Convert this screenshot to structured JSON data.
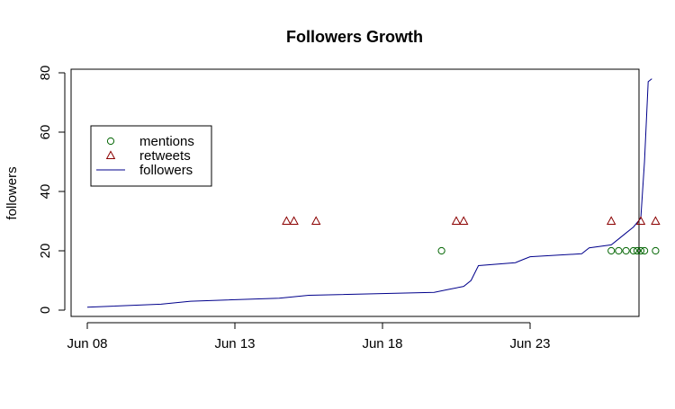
{
  "chart_data": {
    "type": "line",
    "title": "Followers Growth",
    "xlabel": "",
    "ylabel": "followers",
    "xlim": [
      "2015-06-08",
      "2015-06-27"
    ],
    "ylim": [
      0,
      80
    ],
    "x_ticks": [
      {
        "date": "2015-06-08",
        "label": "Jun 08"
      },
      {
        "date": "2015-06-13",
        "label": "Jun 13"
      },
      {
        "date": "2015-06-18",
        "label": "Jun 18"
      },
      {
        "date": "2015-06-23",
        "label": "Jun 23"
      }
    ],
    "y_ticks": [
      0,
      20,
      40,
      60,
      80
    ],
    "grid": false,
    "legend": {
      "position": "top-left",
      "entries": [
        {
          "label": "mentions",
          "marker": "circle",
          "color": "#006400"
        },
        {
          "label": "retweets",
          "marker": "triangle",
          "color": "#8b0000"
        },
        {
          "label": "followers",
          "marker": "line",
          "color": "#00008b"
        }
      ]
    },
    "series": [
      {
        "name": "followers",
        "kind": "line",
        "color": "#00008b",
        "points": [
          [
            "2015-06-08 00:00",
            1
          ],
          [
            "2015-06-10 12:00",
            2
          ],
          [
            "2015-06-11 12:00",
            3
          ],
          [
            "2015-06-14 12:00",
            4
          ],
          [
            "2015-06-15 12:00",
            5
          ],
          [
            "2015-06-19 18:00",
            6
          ],
          [
            "2015-06-20 06:00",
            7
          ],
          [
            "2015-06-20 18:00",
            8
          ],
          [
            "2015-06-21 00:00",
            10
          ],
          [
            "2015-06-21 06:00",
            15
          ],
          [
            "2015-06-22 12:00",
            16
          ],
          [
            "2015-06-22 18:00",
            17
          ],
          [
            "2015-06-23 00:00",
            18
          ],
          [
            "2015-06-24 18:00",
            19
          ],
          [
            "2015-06-25 00:00",
            21
          ],
          [
            "2015-06-25 18:00",
            22
          ],
          [
            "2015-06-26 00:00",
            24
          ],
          [
            "2015-06-26 06:00",
            26
          ],
          [
            "2015-06-26 12:00",
            28
          ],
          [
            "2015-06-26 18:00",
            31
          ],
          [
            "2015-06-26 21:00",
            50
          ],
          [
            "2015-06-27 00:00",
            77
          ],
          [
            "2015-06-27 03:00",
            78
          ]
        ]
      },
      {
        "name": "mentions",
        "kind": "points",
        "marker": "circle",
        "color": "#006400",
        "points": [
          [
            "2015-06-20 00:00",
            20
          ],
          [
            "2015-06-25 18:00",
            20
          ],
          [
            "2015-06-26 00:00",
            20
          ],
          [
            "2015-06-26 06:00",
            20
          ],
          [
            "2015-06-26 12:00",
            20
          ],
          [
            "2015-06-26 15:00",
            20
          ],
          [
            "2015-06-26 18:00",
            20
          ],
          [
            "2015-06-26 21:00",
            20
          ],
          [
            "2015-06-27 06:00",
            20
          ]
        ]
      },
      {
        "name": "retweets",
        "kind": "points",
        "marker": "triangle",
        "color": "#8b0000",
        "points": [
          [
            "2015-06-14 18:00",
            30
          ],
          [
            "2015-06-15 00:00",
            30
          ],
          [
            "2015-06-15 18:00",
            30
          ],
          [
            "2015-06-20 12:00",
            30
          ],
          [
            "2015-06-20 18:00",
            30
          ],
          [
            "2015-06-25 18:00",
            30
          ],
          [
            "2015-06-26 18:00",
            30
          ],
          [
            "2015-06-27 06:00",
            30
          ]
        ]
      }
    ]
  }
}
